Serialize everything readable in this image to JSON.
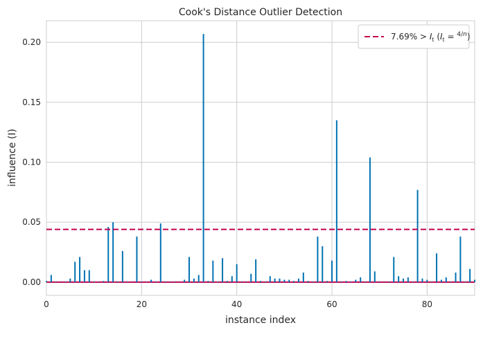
{
  "chart_data": {
    "type": "stem",
    "title": "Cook's Distance Outlier Detection",
    "xlabel": "instance index",
    "ylabel": "influence (I)",
    "xlim": [
      0,
      90
    ],
    "ylim": [
      -0.011,
      0.218
    ],
    "xticks": [
      0,
      20,
      40,
      60,
      80
    ],
    "yticks": [
      0.0,
      0.05,
      0.1,
      0.15,
      0.2
    ],
    "ytick_labels": [
      "0.00",
      "0.05",
      "0.10",
      "0.15",
      "0.20"
    ],
    "threshold": 0.044,
    "legend": {
      "label": "7.69% > I_t (I_t = 4/n)",
      "placement": "top-right"
    },
    "colors": {
      "stem": "#0072b2",
      "threshold": "#c0004f",
      "grid": "#cccccc",
      "spine": "#cccccc"
    },
    "grid": true,
    "series": [
      {
        "x": [
          0,
          1,
          2,
          3,
          4,
          5,
          6,
          7,
          8,
          9,
          10,
          11,
          12,
          13,
          14,
          15,
          16,
          17,
          18,
          19,
          20,
          21,
          22,
          23,
          24,
          25,
          26,
          27,
          28,
          29,
          30,
          31,
          32,
          33,
          34,
          35,
          36,
          37,
          38,
          39,
          40,
          41,
          42,
          43,
          44,
          45,
          46,
          47,
          48,
          49,
          50,
          51,
          52,
          53,
          54,
          55,
          56,
          57,
          58,
          59,
          60,
          61,
          62,
          63,
          64,
          65,
          66,
          67,
          68,
          69,
          70,
          71,
          72,
          73,
          74,
          75,
          76,
          77,
          78,
          79,
          80,
          81,
          82,
          83,
          84,
          85,
          86,
          87,
          88,
          89,
          90
        ],
        "values": [
          0.001,
          0.006,
          0.0005,
          0.0003,
          0.0005,
          0.003,
          0.017,
          0.021,
          0.01,
          0.01,
          0.0005,
          0.0003,
          0.001,
          0.046,
          0.05,
          0.0005,
          0.026,
          0.0005,
          0.0003,
          0.038,
          0.0005,
          0.0003,
          0.002,
          0.0005,
          0.049,
          0.0005,
          0.0003,
          0.0005,
          0.0003,
          0.002,
          0.021,
          0.003,
          0.006,
          0.207,
          0.001,
          0.018,
          0.0005,
          0.02,
          0.001,
          0.005,
          0.015,
          0.0005,
          0.0003,
          0.007,
          0.019,
          0.001,
          0.0005,
          0.005,
          0.003,
          0.003,
          0.002,
          0.002,
          0.001,
          0.003,
          0.008,
          0.001,
          0.0005,
          0.038,
          0.03,
          0.001,
          0.018,
          0.135,
          0.0005,
          0.001,
          0.0005,
          0.002,
          0.004,
          0.0005,
          0.104,
          0.009,
          0.0005,
          0.0003,
          0.0005,
          0.021,
          0.005,
          0.003,
          0.004,
          0.0005,
          0.077,
          0.003,
          0.002,
          0.0005,
          0.024,
          0.002,
          0.004,
          0.0005,
          0.008,
          0.038,
          0.0005,
          0.011,
          0.002
        ]
      }
    ]
  }
}
